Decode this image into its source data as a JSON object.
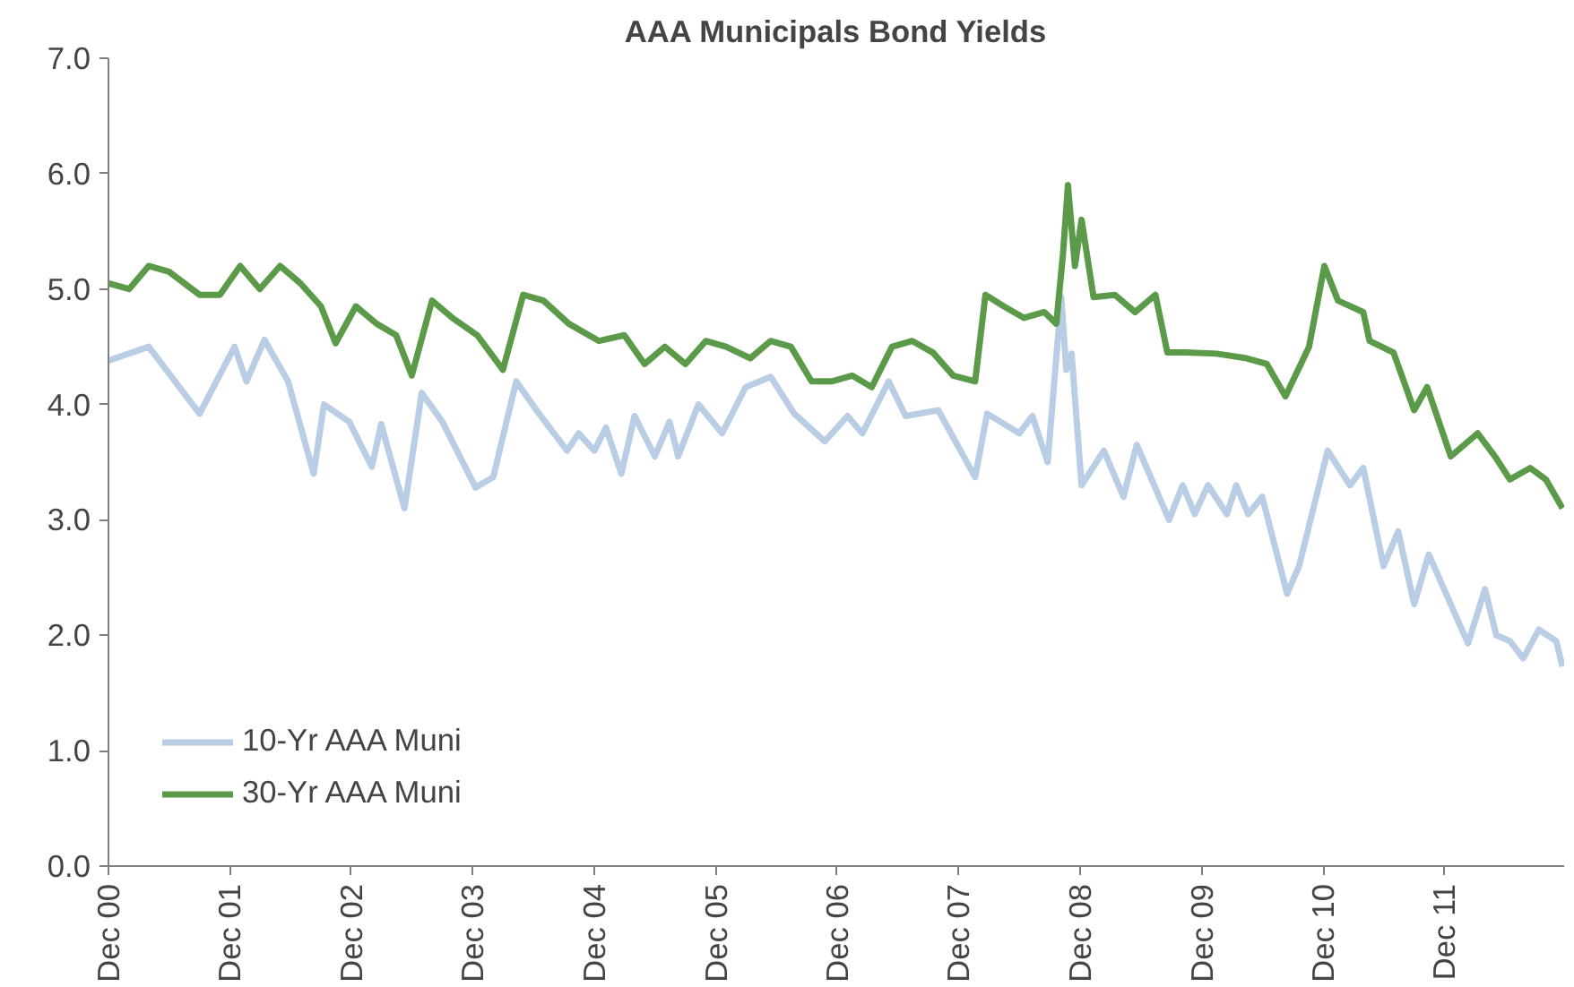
{
  "chart_data": {
    "type": "line",
    "title": "AAA Municipals Bond Yields",
    "xlim": [
      "2000-12-01",
      "2012-11-25"
    ],
    "ylim": [
      0,
      7
    ],
    "xticks": [
      {
        "value": "2000-12-01",
        "label": "Dec 00"
      },
      {
        "value": "2001-12-01",
        "label": "Dec 01"
      },
      {
        "value": "2002-12-01",
        "label": "Dec 02"
      },
      {
        "value": "2003-12-01",
        "label": "Dec 03"
      },
      {
        "value": "2004-12-01",
        "label": "Dec 04"
      },
      {
        "value": "2005-12-01",
        "label": "Dec 05"
      },
      {
        "value": "2006-12-01",
        "label": "Dec 06"
      },
      {
        "value": "2007-12-01",
        "label": "Dec 07"
      },
      {
        "value": "2008-12-01",
        "label": "Dec 08"
      },
      {
        "value": "2009-12-01",
        "label": "Dec 09"
      },
      {
        "value": "2010-12-01",
        "label": "Dec 10"
      },
      {
        "value": "2011-12-01",
        "label": "Dec 11"
      }
    ],
    "yticks": [
      {
        "value": 0,
        "label": "0.0"
      },
      {
        "value": 1,
        "label": "1.0"
      },
      {
        "value": 2,
        "label": "2.0"
      },
      {
        "value": 3,
        "label": "3.0"
      },
      {
        "value": 4,
        "label": "4.0"
      },
      {
        "value": 5,
        "label": "5.0"
      },
      {
        "value": 6,
        "label": "6.0"
      },
      {
        "value": 7,
        "label": "7.0"
      }
    ],
    "grid": false,
    "legend": "bottom left",
    "marker": "none",
    "line_style": "solid",
    "series": [
      {
        "name": "10-Yr AAA Muni",
        "color": "#b9cde5",
        "x": [
          "2000-12-01",
          "2001-04-01",
          "2001-09-01",
          "2001-12-15",
          "2002-01-20",
          "2002-03-15",
          "2002-05-25",
          "2002-08-10",
          "2002-09-10",
          "2002-11-25",
          "2003-02-01",
          "2003-03-01",
          "2003-05-10",
          "2003-07-01",
          "2003-09-01",
          "2003-12-10",
          "2004-02-01",
          "2004-04-10",
          "2004-06-10",
          "2004-09-10",
          "2004-10-15",
          "2004-12-01",
          "2005-01-05",
          "2005-02-20",
          "2005-04-01",
          "2005-06-01",
          "2005-07-15",
          "2005-08-10",
          "2005-10-10",
          "2005-12-20",
          "2006-03-01",
          "2006-05-15",
          "2006-07-25",
          "2006-10-25",
          "2007-01-01",
          "2007-02-15",
          "2007-05-05",
          "2007-06-25",
          "2007-10-01",
          "2008-01-20",
          "2008-02-25",
          "2008-06-01",
          "2008-07-10",
          "2008-08-25",
          "2008-10-05",
          "2008-10-20",
          "2008-11-05",
          "2008-12-05",
          "2009-02-10",
          "2009-04-10",
          "2009-05-20",
          "2009-08-25",
          "2009-10-05",
          "2009-11-10",
          "2009-12-20",
          "2010-02-15",
          "2010-03-15",
          "2010-04-20",
          "2010-06-01",
          "2010-08-15",
          "2010-09-20",
          "2010-12-15",
          "2011-02-20",
          "2011-04-01",
          "2011-06-01",
          "2011-07-15",
          "2011-09-01",
          "2011-10-15",
          "2012-02-10",
          "2012-04-01",
          "2012-05-05",
          "2012-06-15",
          "2012-07-25",
          "2012-09-10",
          "2012-11-01",
          "2012-11-20"
        ],
        "values": [
          4.38,
          4.5,
          3.92,
          4.5,
          4.2,
          4.56,
          4.2,
          3.4,
          4.0,
          3.85,
          3.46,
          3.83,
          3.1,
          4.1,
          3.85,
          3.28,
          3.37,
          4.2,
          3.95,
          3.6,
          3.75,
          3.6,
          3.8,
          3.4,
          3.9,
          3.55,
          3.85,
          3.55,
          4.0,
          3.75,
          4.15,
          4.24,
          3.92,
          3.68,
          3.9,
          3.75,
          4.2,
          3.9,
          3.95,
          3.37,
          3.92,
          3.75,
          3.9,
          3.5,
          4.93,
          4.3,
          4.44,
          3.3,
          3.6,
          3.2,
          3.65,
          3.0,
          3.3,
          3.05,
          3.3,
          3.05,
          3.3,
          3.05,
          3.2,
          2.36,
          2.6,
          3.6,
          3.3,
          3.45,
          2.6,
          2.9,
          2.27,
          2.7,
          1.93,
          2.4,
          2.0,
          1.95,
          1.8,
          2.05,
          1.95,
          1.73
        ]
      },
      {
        "name": "30-Yr AAA Muni",
        "color": "#5b9a48",
        "x": [
          "2000-12-01",
          "2001-02-01",
          "2001-04-01",
          "2001-06-01",
          "2001-09-01",
          "2001-11-01",
          "2002-01-01",
          "2002-03-01",
          "2002-05-01",
          "2002-07-01",
          "2002-09-01",
          "2002-10-15",
          "2002-12-15",
          "2003-02-15",
          "2003-04-15",
          "2003-06-01",
          "2003-08-01",
          "2003-10-01",
          "2003-12-15",
          "2004-03-01",
          "2004-05-01",
          "2004-07-01",
          "2004-09-15",
          "2004-12-15",
          "2005-03-01",
          "2005-05-01",
          "2005-07-01",
          "2005-09-01",
          "2005-11-01",
          "2006-01-01",
          "2006-03-15",
          "2006-05-15",
          "2006-07-15",
          "2006-09-15",
          "2006-11-15",
          "2007-01-15",
          "2007-03-15",
          "2007-05-15",
          "2007-07-15",
          "2007-09-15",
          "2007-11-15",
          "2008-01-20",
          "2008-02-20",
          "2008-04-15",
          "2008-06-15",
          "2008-08-15",
          "2008-09-20",
          "2008-10-10",
          "2008-10-25",
          "2008-11-15",
          "2008-12-05",
          "2009-01-10",
          "2009-03-15",
          "2009-05-15",
          "2009-07-15",
          "2009-08-20",
          "2009-10-15",
          "2010-01-15",
          "2010-04-15",
          "2010-06-15",
          "2010-08-10",
          "2010-10-20",
          "2010-12-05",
          "2011-01-15",
          "2011-04-01",
          "2011-04-20",
          "2011-07-01",
          "2011-09-01",
          "2011-10-10",
          "2011-12-20",
          "2012-03-10",
          "2012-05-01",
          "2012-06-15",
          "2012-08-15",
          "2012-10-01",
          "2012-11-20"
        ],
        "values": [
          5.05,
          5.0,
          5.2,
          5.15,
          4.95,
          4.95,
          5.2,
          5.0,
          5.2,
          5.05,
          4.85,
          4.53,
          4.85,
          4.7,
          4.6,
          4.25,
          4.9,
          4.75,
          4.6,
          4.3,
          4.95,
          4.9,
          4.7,
          4.55,
          4.6,
          4.35,
          4.5,
          4.35,
          4.55,
          4.5,
          4.4,
          4.55,
          4.5,
          4.2,
          4.2,
          4.25,
          4.15,
          4.5,
          4.55,
          4.45,
          4.25,
          4.2,
          4.95,
          4.85,
          4.75,
          4.8,
          4.7,
          5.3,
          5.9,
          5.2,
          5.6,
          4.93,
          4.95,
          4.8,
          4.95,
          4.45,
          4.45,
          4.44,
          4.4,
          4.35,
          4.07,
          4.5,
          5.2,
          4.9,
          4.8,
          4.55,
          4.45,
          3.95,
          4.15,
          3.55,
          3.75,
          3.55,
          3.35,
          3.45,
          3.35,
          3.1
        ]
      }
    ]
  }
}
